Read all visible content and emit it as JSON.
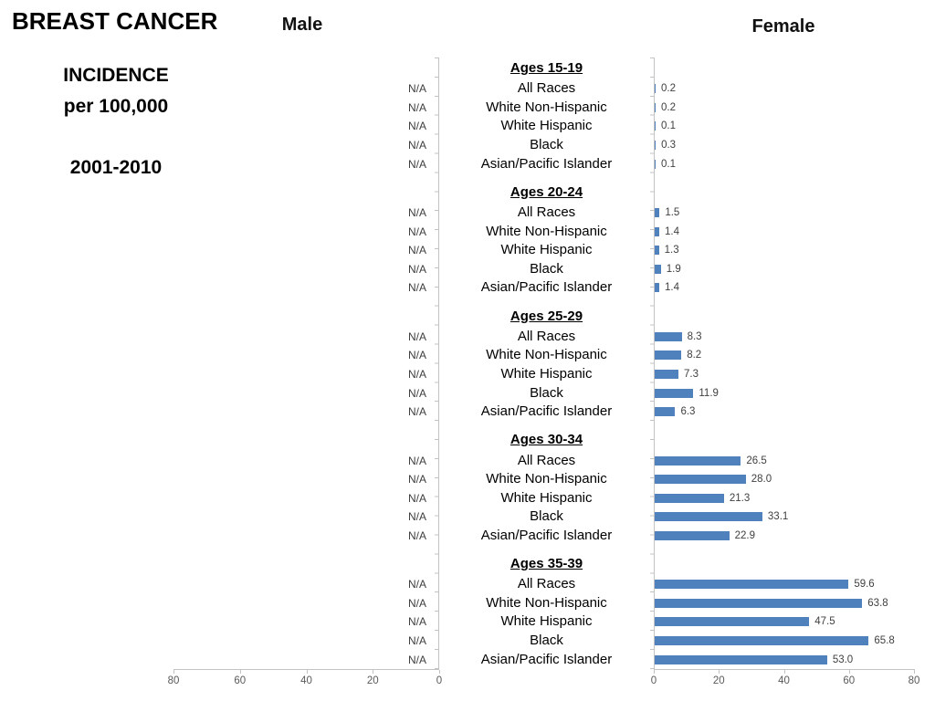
{
  "title": {
    "main": "BREAST CANCER",
    "sub1": "INCIDENCE",
    "sub2": "per 100,000",
    "years": "2001-2010"
  },
  "chart_data": {
    "type": "bar",
    "orientation": "horizontal",
    "title": "BREAST CANCER INCIDENCE per 100,000, 2001-2010",
    "panels": [
      {
        "name": "Male"
      },
      {
        "name": "Female"
      }
    ],
    "axis": {
      "xmax": 80,
      "male_tick_labels": [
        "80",
        "60",
        "40",
        "20",
        "0"
      ],
      "female_tick_labels": [
        "0",
        "20",
        "40",
        "60",
        "80"
      ]
    },
    "bar_color": "#4F81BD",
    "axis_color": "#c3c3c3",
    "na_text": "N/A",
    "groups": [
      {
        "label": "Ages 15-19",
        "categories": [
          "All Races",
          "White Non-Hispanic",
          "White Hispanic",
          "Black",
          "Asian/Pacific Islander"
        ],
        "male": [
          "N/A",
          "N/A",
          "N/A",
          "N/A",
          "N/A"
        ],
        "female": [
          "0.2",
          "0.2",
          "0.1",
          "0.3",
          "0.1"
        ]
      },
      {
        "label": "Ages 20-24",
        "categories": [
          "All Races",
          "White Non-Hispanic",
          "White Hispanic",
          "Black",
          "Asian/Pacific Islander"
        ],
        "male": [
          "N/A",
          "N/A",
          "N/A",
          "N/A",
          "N/A"
        ],
        "female": [
          "1.5",
          "1.4",
          "1.3",
          "1.9",
          "1.4"
        ]
      },
      {
        "label": "Ages 25-29",
        "categories": [
          "All Races",
          "White Non-Hispanic",
          "White Hispanic",
          "Black",
          "Asian/Pacific Islander"
        ],
        "male": [
          "N/A",
          "N/A",
          "N/A",
          "N/A",
          "N/A"
        ],
        "female": [
          "8.3",
          "8.2",
          "7.3",
          "11.9",
          "6.3"
        ]
      },
      {
        "label": "Ages 30-34",
        "categories": [
          "All Races",
          "White Non-Hispanic",
          "White  Hispanic",
          "Black",
          "Asian/Pacific Islander"
        ],
        "male": [
          "N/A",
          "N/A",
          "N/A",
          "N/A",
          "N/A"
        ],
        "female": [
          "26.5",
          "28.0",
          "21.3",
          "33.1",
          "22.9"
        ]
      },
      {
        "label": "Ages 35-39",
        "categories": [
          "All Races",
          "White Non-Hispanic",
          "White Hispanic",
          "Black",
          "Asian/Pacific Islander"
        ],
        "male": [
          "N/A",
          "N/A",
          "N/A",
          "N/A",
          "N/A"
        ],
        "female": [
          "59.6",
          "63.8",
          "47.5",
          "65.8",
          "53.0"
        ]
      }
    ]
  }
}
